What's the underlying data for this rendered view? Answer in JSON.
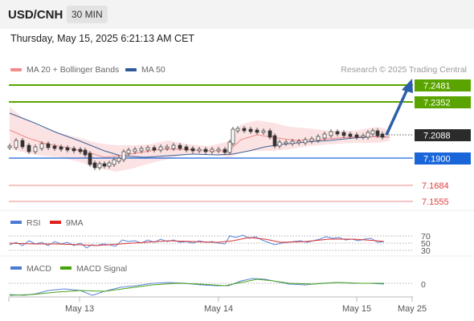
{
  "header": {
    "symbol": "USD/CNH",
    "timeframe": "30 MIN"
  },
  "datetime": "Thursday, May 15, 2025 6:21:13 AM CET",
  "legend": {
    "ma20_label": "MA 20 + Bollinger Bands",
    "ma50_label": "MA 50",
    "copyright": "Research © 2025 Trading Central"
  },
  "colors": {
    "target_green": "#5aa400",
    "pivot_blue": "#1a66d9",
    "support_red": "#ee7777",
    "arrow": "#2d5fa8",
    "last_price": "#2b2b2b",
    "rsi": "#4c7bd4",
    "ma9": "#e02020",
    "macd": "#4c7bd4",
    "macd_signal": "#44a30a"
  },
  "levels": {
    "target2": "7.2481",
    "target1": "7.2352",
    "last": "7.2088",
    "pivot": "7.1900",
    "support1": "7.1684",
    "support2": "7.1555"
  },
  "rsi_panel": {
    "rsi_label": "RSI",
    "ma9_label": "9MA",
    "levels": [
      "70",
      "50",
      "30"
    ]
  },
  "macd_panel": {
    "macd_label": "MACD",
    "signal_label": "MACD Signal",
    "zero_label": "0"
  },
  "xaxis": {
    "labels": [
      "May 13",
      "May 14",
      "May 15",
      "May 25"
    ]
  }
}
